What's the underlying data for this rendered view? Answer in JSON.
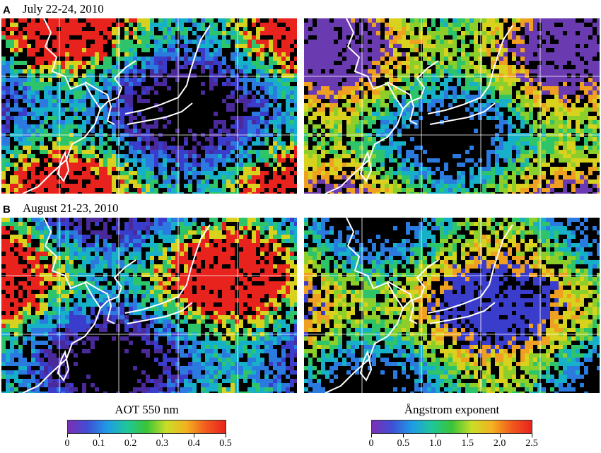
{
  "panels": [
    {
      "letter": "A",
      "title": "July 22-24, 2010"
    },
    {
      "letter": "B",
      "title": "August 21-23, 2010"
    }
  ],
  "colorbars": [
    {
      "label": "AOT 550 nm",
      "ticks": [
        "0",
        "0.1",
        "0.2",
        "0.3",
        "0.4",
        "0.5"
      ],
      "colors": [
        "#7b2fb5",
        "#3f4fd6",
        "#1e9be6",
        "#1fc79a",
        "#39c437",
        "#c9de28",
        "#f3b21f",
        "#f25a1e",
        "#e8231e"
      ]
    },
    {
      "label": "Ångstrom exponent",
      "ticks": [
        "0",
        "0.5",
        "1.0",
        "1.5",
        "2.0",
        "2.5"
      ],
      "colors": [
        "#7b2fb5",
        "#3f4fd6",
        "#1e9be6",
        "#1fc79a",
        "#39c437",
        "#c9de28",
        "#f3b21f",
        "#f25a1e",
        "#e8231e"
      ]
    }
  ],
  "maps": [
    {
      "name": "aot-july-map",
      "palette": [
        "#4a2a9a",
        "#3a3ccc",
        "#2a7ae0",
        "#16b0c8",
        "#2ec46a",
        "#d8d21e",
        "#e8231e"
      ]
    },
    {
      "name": "angstrom-july-map",
      "palette": [
        "#2a7ae0",
        "#16b0c8",
        "#2ec46a",
        "#8ccf2a",
        "#d8d21e",
        "#f0a020",
        "#6a3ab0"
      ]
    },
    {
      "name": "aot-august-map",
      "palette": [
        "#4a2a9a",
        "#3a3ccc",
        "#2a7ae0",
        "#16b0c8",
        "#2ec46a",
        "#d8d21e",
        "#e8231e"
      ]
    },
    {
      "name": "angstrom-august-map",
      "palette": [
        "#2a7ae0",
        "#16b0c8",
        "#2ec46a",
        "#8ccf2a",
        "#d8d21e",
        "#f0a020",
        "#3a3ccc"
      ]
    }
  ]
}
